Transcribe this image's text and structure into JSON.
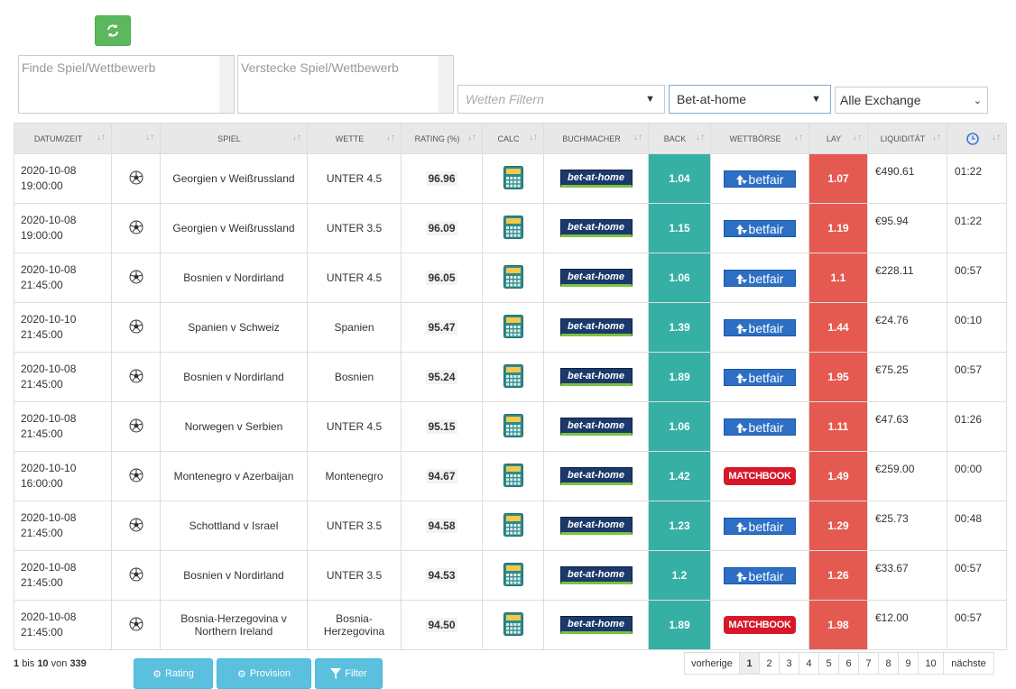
{
  "toolbar": {
    "buttons": [
      "Rating",
      "Provision",
      "Filter"
    ]
  },
  "search": {
    "find": "Finde Spiel/Wettbewerb",
    "hide": "Verstecke Spiel/Wettbewerb"
  },
  "filters": {
    "bets": "Wetten Filtern",
    "bookmaker": "Bet-at-home",
    "exchange": "Alle Exchange"
  },
  "table": {
    "headers": {
      "datetime": "DATUM/ZEIT",
      "game": "SPIEL",
      "bet": "WETTE",
      "rating": "RATING (%)",
      "calc": "CALC",
      "bookmaker": "BUCHMACHER",
      "back": "BACK",
      "exchange": "WETTBÖRSE",
      "lay": "LAY",
      "liquidity": "LIQUIDITÄT"
    },
    "rows": [
      {
        "date": "2020-10-08",
        "time": "19:00:00",
        "game": "Georgien v Weißrussland",
        "bet": "UNTER 4.5",
        "rating": "96.96",
        "bookmaker": "bet-at-home",
        "back": "1.04",
        "exchange": "betfair",
        "lay": "1.07",
        "liquidity": "€490.61",
        "remaining": "01:22"
      },
      {
        "date": "2020-10-08",
        "time": "19:00:00",
        "game": "Georgien v Weißrussland",
        "bet": "UNTER 3.5",
        "rating": "96.09",
        "bookmaker": "bet-at-home",
        "back": "1.15",
        "exchange": "betfair",
        "lay": "1.19",
        "liquidity": "€95.94",
        "remaining": "01:22"
      },
      {
        "date": "2020-10-08",
        "time": "21:45:00",
        "game": "Bosnien v Nordirland",
        "bet": "UNTER 4.5",
        "rating": "96.05",
        "bookmaker": "bet-at-home",
        "back": "1.06",
        "exchange": "betfair",
        "lay": "1.1",
        "liquidity": "€228.11",
        "remaining": "00:57"
      },
      {
        "date": "2020-10-10",
        "time": "21:45:00",
        "game": "Spanien v Schweiz",
        "bet": "Spanien",
        "rating": "95.47",
        "bookmaker": "bet-at-home",
        "back": "1.39",
        "exchange": "betfair",
        "lay": "1.44",
        "liquidity": "€24.76",
        "remaining": "00:10"
      },
      {
        "date": "2020-10-08",
        "time": "21:45:00",
        "game": "Bosnien v Nordirland",
        "bet": "Bosnien",
        "rating": "95.24",
        "bookmaker": "bet-at-home",
        "back": "1.89",
        "exchange": "betfair",
        "lay": "1.95",
        "liquidity": "€75.25",
        "remaining": "00:57"
      },
      {
        "date": "2020-10-08",
        "time": "21:45:00",
        "game": "Norwegen v Serbien",
        "bet": "UNTER 4.5",
        "rating": "95.15",
        "bookmaker": "bet-at-home",
        "back": "1.06",
        "exchange": "betfair",
        "lay": "1.11",
        "liquidity": "€47.63",
        "remaining": "01:26"
      },
      {
        "date": "2020-10-10",
        "time": "16:00:00",
        "game": "Montenegro v Azerbaijan",
        "bet": "Montenegro",
        "rating": "94.67",
        "bookmaker": "bet-at-home",
        "back": "1.42",
        "exchange": "MATCHBOOK",
        "lay": "1.49",
        "liquidity": "€259.00",
        "remaining": "00:00"
      },
      {
        "date": "2020-10-08",
        "time": "21:45:00",
        "game": "Schottland v Israel",
        "bet": "UNTER 3.5",
        "rating": "94.58",
        "bookmaker": "bet-at-home",
        "back": "1.23",
        "exchange": "betfair",
        "lay": "1.29",
        "liquidity": "€25.73",
        "remaining": "00:48"
      },
      {
        "date": "2020-10-08",
        "time": "21:45:00",
        "game": "Bosnien v Nordirland",
        "bet": "UNTER 3.5",
        "rating": "94.53",
        "bookmaker": "bet-at-home",
        "back": "1.2",
        "exchange": "betfair",
        "lay": "1.26",
        "liquidity": "€33.67",
        "remaining": "00:57"
      },
      {
        "date": "2020-10-08",
        "time": "21:45:00",
        "game": "Bosnia-Herzegovina v Northern Ireland",
        "bet": "Bosnia-Herzegovina",
        "rating": "94.50",
        "bookmaker": "bet-at-home",
        "back": "1.89",
        "exchange": "MATCHBOOK",
        "lay": "1.98",
        "liquidity": "€12.00",
        "remaining": "00:57"
      }
    ]
  },
  "info": {
    "from": "1",
    "sep1": "bis",
    "to": "10",
    "sep2": "von",
    "total": "339"
  },
  "pagination": {
    "prev": "vorherige",
    "pages": [
      "1",
      "2",
      "3",
      "4",
      "5",
      "6",
      "7",
      "8",
      "9",
      "10"
    ],
    "next": "nächste"
  }
}
